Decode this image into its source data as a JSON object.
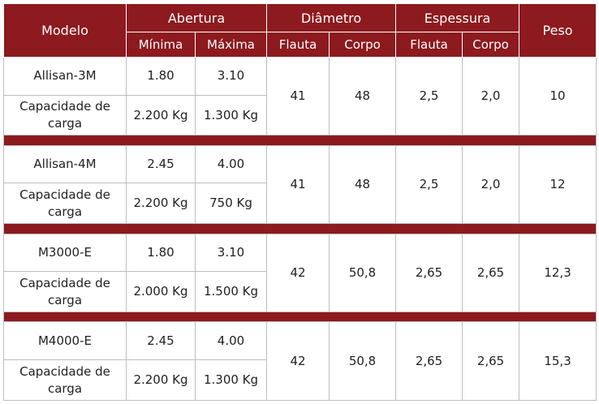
{
  "header": {
    "modelo": "Modelo",
    "abertura": "Abertura",
    "diametro": "Diâmetro",
    "espessura": "Espessura",
    "peso": "Peso",
    "minima": "Mínima",
    "maxima": "Máxima",
    "flauta_d": "Flauta",
    "corpo_d": "Corpo",
    "flauta_e": "Flauta",
    "corpo_e": "Corpo"
  },
  "colors": {
    "header_bg": "#8c1a1e",
    "header_text": "#ffffff",
    "border": "#bdbdbd"
  },
  "models": [
    {
      "name": "Allisan-3M",
      "minima": "1.80",
      "maxima": "3.10",
      "cap_label": "Capacidade de carga",
      "cap_min": "2.200 Kg",
      "cap_max": "1.300 Kg",
      "diam_flauta": "41",
      "diam_corpo": "48",
      "esp_flauta": "2,5",
      "esp_corpo": "2,0",
      "peso": "10"
    },
    {
      "name": "Allisan-4M",
      "minima": "2.45",
      "maxima": "4.00",
      "cap_label": "Capacidade de carga",
      "cap_min": "2.200 Kg",
      "cap_max": "750 Kg",
      "diam_flauta": "41",
      "diam_corpo": "48",
      "esp_flauta": "2,5",
      "esp_corpo": "2,0",
      "peso": "12"
    },
    {
      "name": "M3000-E",
      "minima": "1.80",
      "maxima": "3.10",
      "cap_label": "Capacidade de carga",
      "cap_min": "2.000 Kg",
      "cap_max": "1.500 Kg",
      "diam_flauta": "42",
      "diam_corpo": "50,8",
      "esp_flauta": "2,65",
      "esp_corpo": "2,65",
      "peso": "12,3"
    },
    {
      "name": "M4000-E",
      "minima": "2.45",
      "maxima": "4.00",
      "cap_label": "Capacidade de carga",
      "cap_min": "2.200 Kg",
      "cap_max": "1.300 Kg",
      "diam_flauta": "42",
      "diam_corpo": "50,8",
      "esp_flauta": "2,65",
      "esp_corpo": "2,65",
      "peso": "15,3"
    }
  ]
}
